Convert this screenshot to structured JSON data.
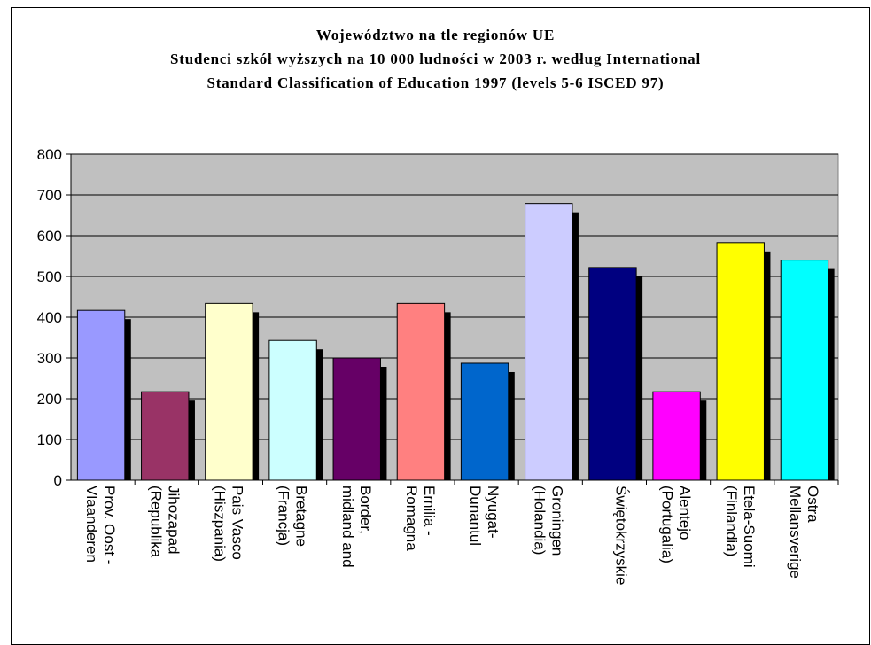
{
  "chart_data": {
    "type": "bar",
    "title": [
      "Województwo na tle regionów UE",
      "Studenci szkół wyższych na 10 000 ludności w 2003 r. według International",
      "Standard Classification of Education 1997 (levels 5-6 ISCED 97)"
    ],
    "categories": [
      [
        "Prov. Oost -",
        "Vlaanderen"
      ],
      [
        "Jihozapad",
        "(Republika"
      ],
      [
        "Pais Vasco",
        "(Hiszpania)"
      ],
      [
        "Bretagne",
        "(Francja)"
      ],
      [
        "Border,",
        "midland and"
      ],
      [
        "Emilia -",
        "Romagna"
      ],
      [
        "Nyugat-",
        "Dunantul"
      ],
      [
        "Groningen",
        "(Holandia)"
      ],
      [
        "Świętokrzyskie",
        ""
      ],
      [
        "Alentejo",
        "(Portugalia)"
      ],
      [
        "Etela-Suomi",
        "(Finlandia)"
      ],
      [
        "Ostra",
        "Mellansverige"
      ]
    ],
    "values": [
      417,
      217,
      434,
      343,
      300,
      434,
      287,
      679,
      522,
      217,
      583,
      540
    ],
    "colors": [
      "#9999ff",
      "#993366",
      "#ffffcc",
      "#ccffff",
      "#660066",
      "#ff8080",
      "#0066cc",
      "#ccccff",
      "#000080",
      "#ff00ff",
      "#ffff00",
      "#00ffff"
    ],
    "ylim": [
      0,
      800
    ],
    "yticks": [
      0,
      100,
      200,
      300,
      400,
      500,
      600,
      700,
      800
    ],
    "plot_background": "#c0c0c0",
    "grid": true,
    "legend": "none"
  }
}
